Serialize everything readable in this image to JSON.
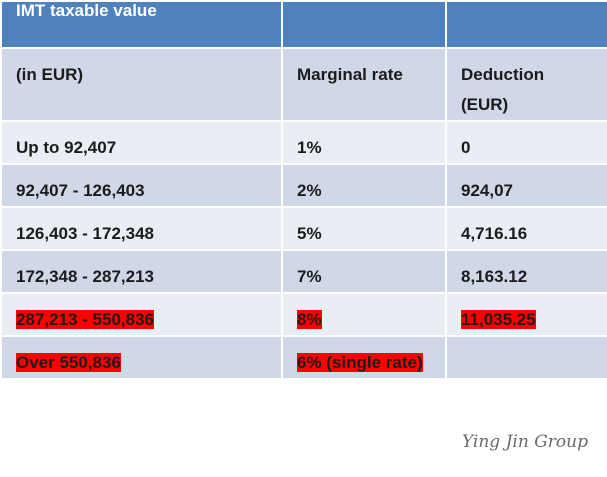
{
  "header": {
    "cells": [
      "IMT taxable value"
    ]
  },
  "table": {
    "rows": [
      [
        "(in EUR)",
        "Marginal rate",
        "Deduction (EUR)"
      ],
      [
        "Up to 92,407",
        "1%",
        "0"
      ],
      [
        "92,407 - 126,403",
        "2%",
        "924,07"
      ],
      [
        "126,403 - 172,348",
        "5%",
        "4,716.16"
      ],
      [
        "172,348 - 287,213",
        "7%",
        "8,163.12"
      ],
      [
        "287,213 - 550,836",
        "8%",
        "11,035.25"
      ],
      [
        "Over 550,836",
        "6% (single rate)"
      ]
    ],
    "highlighted_rows": [
      5,
      6
    ],
    "highlight_color": "#ff0000"
  },
  "watermark": "Ying Jin Group"
}
